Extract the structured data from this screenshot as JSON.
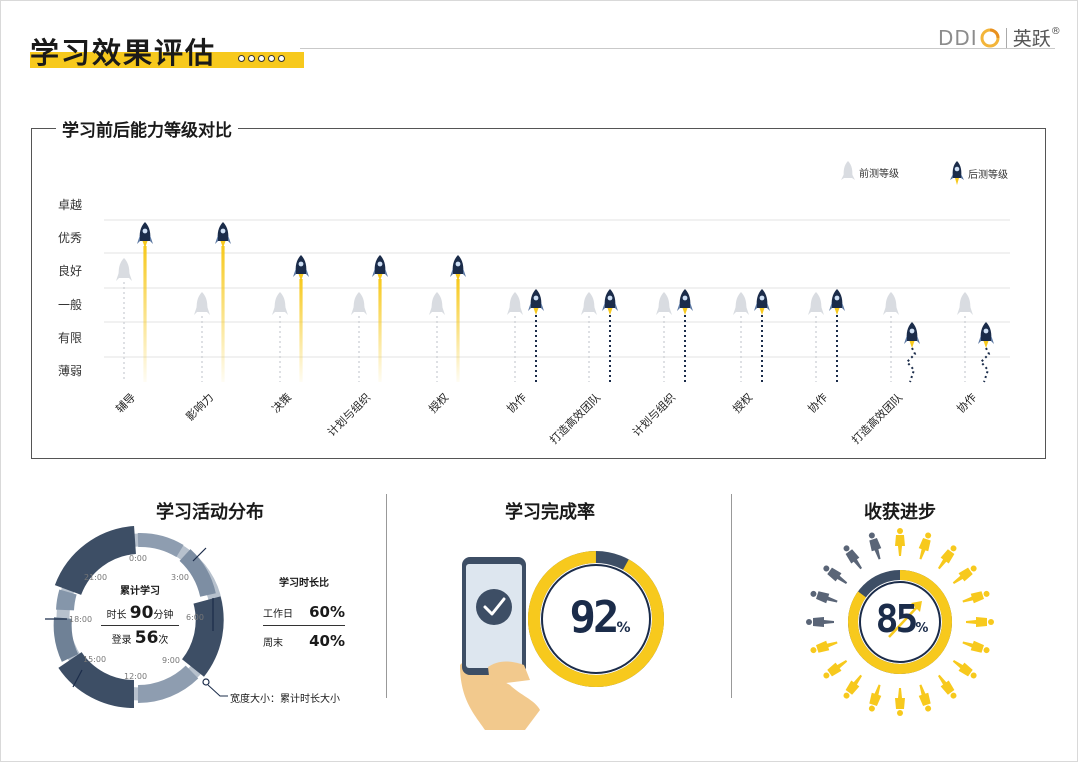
{
  "page": {
    "title": "学习效果评估",
    "logo_ddi": "DDI",
    "logo_brand": "英跃",
    "logo_reg": "®"
  },
  "chart_data": {
    "type": "line",
    "title": "学习前后能力等级对比",
    "y_levels": [
      "卓越",
      "优秀",
      "良好",
      "一般",
      "有限",
      "薄弱"
    ],
    "categories": [
      "辅导",
      "影响力",
      "决策",
      "计划与组织",
      "授权",
      "协作",
      "打造高效团队",
      "计划与组织",
      "授权",
      "协作",
      "打造高效团队",
      "协作"
    ],
    "series": [
      {
        "name": "前测等级",
        "values": [
          "良好",
          "一般",
          "一般",
          "一般",
          "一般",
          "一般",
          "一般",
          "一般",
          "一般",
          "一般",
          "一般",
          "一般"
        ]
      },
      {
        "name": "后测等级",
        "values": [
          "优秀",
          "优秀",
          "良好",
          "良好",
          "良好",
          "一般",
          "一般",
          "一般",
          "一般",
          "一般",
          "有限",
          "有限"
        ]
      }
    ],
    "legend": "top-right"
  },
  "activity": {
    "title": "学习活动分布",
    "center_title": "累计学习",
    "duration_label": "时长",
    "duration_value": "90",
    "duration_unit": "分钟",
    "login_label": "登录",
    "login_value": "56",
    "login_unit": "次",
    "clock_labels": [
      "0:00",
      "3:00",
      "6:00",
      "9:00",
      "12:00",
      "15:00",
      "18:00",
      "21:00"
    ],
    "ratio_title": "学习时长比",
    "weekday_label": "工作日",
    "weekday_value": "60%",
    "weekend_label": "周末",
    "weekend_value": "40%",
    "width_note": "宽度大小：累计时长大小"
  },
  "completion": {
    "title": "学习完成率",
    "value": "92",
    "percent": 92,
    "unit": "%"
  },
  "progress": {
    "title": "收获进步",
    "value": "85",
    "percent": 85,
    "unit": "%"
  },
  "colors": {
    "yellow": "#f7c91d",
    "navy": "#1b2c4a",
    "slate": "#3d4e65",
    "light_gray": "#d6dae0"
  }
}
